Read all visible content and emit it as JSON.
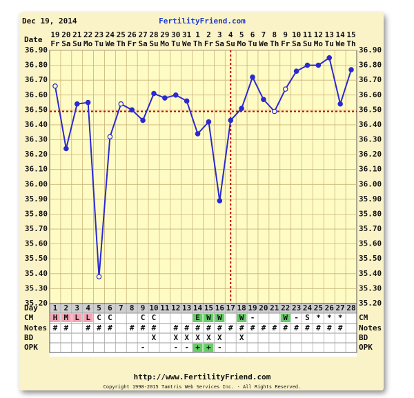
{
  "header": {
    "date": "Dec 19, 2014",
    "site": "FertilityFriend.com"
  },
  "footer": {
    "url": "http://www.FertilityFriend.com",
    "copyright": "Copyright 1998-2015 Tamtris Web Services Inc. - All Rights Reserved."
  },
  "chart_data": {
    "type": "line",
    "color": "#2a2ad0",
    "grid": true,
    "coverline": 36.49,
    "coverline_color": "#cc0000",
    "ovulation_day": 17,
    "row_labels": {
      "date": "Date",
      "day": "Day",
      "cm": "CM",
      "notes": "Notes",
      "bd": "BD",
      "opk": "OPK"
    },
    "dates": [
      "19",
      "20",
      "21",
      "22",
      "23",
      "24",
      "25",
      "26",
      "27",
      "28",
      "29",
      "30",
      "31",
      "1",
      "2",
      "3",
      "4",
      "5",
      "6",
      "7",
      "8",
      "9",
      "10",
      "11",
      "12",
      "13",
      "14",
      "15"
    ],
    "weekdays": [
      "Fr",
      "Sa",
      "Su",
      "Mo",
      "Tu",
      "We",
      "Th",
      "Fr",
      "Sa",
      "Su",
      "Mo",
      "Tu",
      "We",
      "Th",
      "Fr",
      "Sa",
      "Su",
      "Mo",
      "Tu",
      "We",
      "Th",
      "Fr",
      "Sa",
      "Su",
      "Mo",
      "Tu",
      "We",
      "Th"
    ],
    "days": [
      1,
      2,
      3,
      4,
      5,
      6,
      7,
      8,
      9,
      10,
      11,
      12,
      13,
      14,
      15,
      16,
      17,
      18,
      19,
      20,
      21,
      22,
      23,
      24,
      25,
      26,
      27,
      28
    ],
    "values": [
      36.66,
      36.24,
      36.54,
      36.55,
      35.38,
      36.32,
      36.54,
      36.5,
      36.43,
      36.61,
      36.58,
      36.6,
      36.56,
      36.34,
      36.42,
      35.89,
      36.43,
      36.51,
      36.72,
      36.57,
      36.49,
      36.64,
      36.76,
      36.8,
      36.8,
      36.85,
      36.54,
      36.77
    ],
    "markers": [
      "open",
      "filled",
      "filled",
      "filled",
      "open",
      "open",
      "open",
      "filled",
      "filled",
      "filled",
      "filled",
      "filled",
      "filled",
      "filled",
      "filled",
      "filled",
      "filled",
      "filled",
      "filled",
      "filled",
      "open",
      "open",
      "filled",
      "filled",
      "filled",
      "filled",
      "filled",
      "filled"
    ],
    "ylim": [
      35.2,
      36.9
    ],
    "yticks": [
      {
        "value": 35.2,
        "label": "35.20"
      },
      {
        "value": 35.3,
        "label": "35.30"
      },
      {
        "value": 35.4,
        "label": "35.40"
      },
      {
        "value": 35.5,
        "label": "35.50"
      },
      {
        "value": 35.6,
        "label": "35.60"
      },
      {
        "value": 35.7,
        "label": "35.70"
      },
      {
        "value": 35.8,
        "label": "35.80"
      },
      {
        "value": 35.9,
        "label": "35.90"
      },
      {
        "value": 36.0,
        "label": "36.00"
      },
      {
        "value": 36.1,
        "label": "36.10"
      },
      {
        "value": 36.2,
        "label": "36.20"
      },
      {
        "value": 36.3,
        "label": "36.30"
      },
      {
        "value": 36.4,
        "label": "36.40"
      },
      {
        "value": 36.5,
        "label": "36.50"
      },
      {
        "value": 36.6,
        "label": "36.60"
      },
      {
        "value": 36.7,
        "label": "36.70"
      },
      {
        "value": 36.8,
        "label": "36.80"
      },
      {
        "value": 36.9,
        "label": "36.90"
      }
    ],
    "cm": [
      {
        "text": "H",
        "fill": "#f4a4b4"
      },
      {
        "text": "M",
        "fill": "#f4a4b4"
      },
      {
        "text": "L",
        "fill": "#f4a4b4"
      },
      {
        "text": "L",
        "fill": "#f4a4b4"
      },
      "C",
      "C",
      null,
      null,
      "C",
      "C",
      null,
      null,
      null,
      {
        "text": "E",
        "fill": "#66cc66"
      },
      {
        "text": "W",
        "fill": "#66cc66"
      },
      {
        "text": "W",
        "fill": "#66cc66"
      },
      null,
      {
        "text": "W",
        "fill": "#66cc66"
      },
      "-",
      null,
      null,
      {
        "text": "W",
        "fill": "#66cc66"
      },
      "-",
      "S",
      "*",
      "*",
      "*",
      null
    ],
    "notes": [
      "#",
      "#",
      null,
      "#",
      "#",
      "#",
      null,
      "#",
      "#",
      "#",
      null,
      "#",
      "#",
      "#",
      "#",
      "#",
      "#",
      "#",
      "#",
      "#",
      "#",
      "#",
      "#",
      "#",
      "#",
      "#",
      "#",
      null
    ],
    "bd": [
      null,
      null,
      null,
      null,
      null,
      null,
      null,
      null,
      null,
      "X",
      null,
      "X",
      "X",
      "X",
      "X",
      "X",
      null,
      "X",
      null,
      null,
      null,
      null,
      null,
      null,
      null,
      null,
      null,
      null
    ],
    "opk": [
      null,
      null,
      null,
      null,
      null,
      null,
      null,
      null,
      "-",
      null,
      null,
      "-",
      "-",
      {
        "text": "+",
        "fill": "#66cc66"
      },
      {
        "text": "+",
        "fill": "#66cc66"
      },
      "-",
      null,
      null,
      null,
      null,
      null,
      null,
      null,
      null,
      null,
      null,
      null,
      null
    ]
  }
}
